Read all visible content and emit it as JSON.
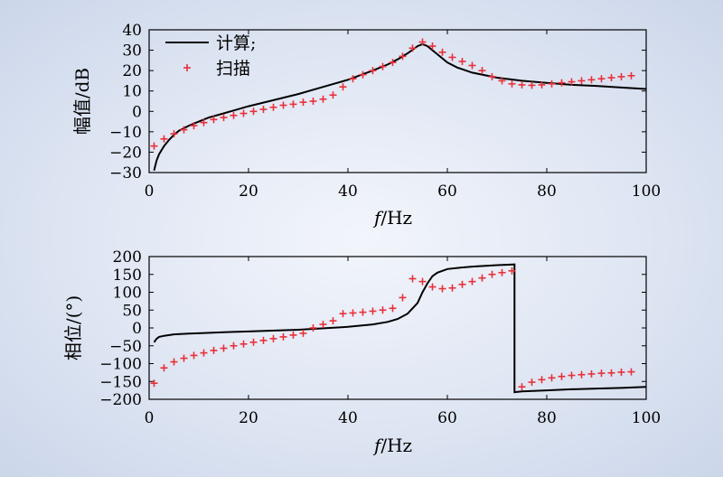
{
  "chart_data": [
    {
      "type": "line",
      "title": "",
      "xlabel_italic": "f",
      "xlabel_rest": "/Hz",
      "ylabel": "幅值/dB",
      "xlim": [
        0,
        100
      ],
      "ylim": [
        -30,
        40
      ],
      "xticks": [
        "0",
        "20",
        "40",
        "60",
        "80",
        "100"
      ],
      "yticks": [
        "40",
        "30",
        "20",
        "10",
        "0",
        "−10",
        "−20",
        "−30"
      ],
      "legend": {
        "placement": "top-left",
        "entries": [
          "计算;",
          "扫描"
        ]
      },
      "series": [
        {
          "name": "计算;",
          "style": "line",
          "color": "#000000",
          "x": [
            1,
            1.5,
            2,
            3,
            4,
            5,
            6,
            8,
            10,
            12,
            15,
            20,
            25,
            30,
            35,
            40,
            45,
            48,
            50,
            52,
            54,
            55,
            56,
            58,
            60,
            62,
            65,
            70,
            75,
            80,
            85,
            90,
            95,
            100
          ],
          "y": [
            -29,
            -24,
            -21,
            -17,
            -14,
            -11.5,
            -9.5,
            -7,
            -5,
            -3,
            -1,
            2.5,
            5.5,
            8.5,
            12,
            15.5,
            20,
            23,
            25.5,
            28.5,
            32,
            33,
            32,
            28,
            24,
            21.5,
            19,
            16.5,
            15,
            14,
            13,
            12.5,
            11.7,
            11
          ]
        },
        {
          "name": "扫描",
          "style": "plus-marker",
          "color": "#e8303a",
          "x": [
            1,
            3,
            5,
            7,
            9,
            11,
            13,
            15,
            17,
            19,
            21,
            23,
            25,
            27,
            29,
            31,
            33,
            35,
            37,
            39,
            41,
            43,
            45,
            47,
            49,
            51,
            53,
            55,
            57,
            59,
            61,
            63,
            65,
            67,
            69,
            71,
            73,
            75,
            77,
            79,
            81,
            83,
            85,
            87,
            89,
            91,
            93,
            95,
            97
          ],
          "y": [
            -17,
            -13.5,
            -11,
            -9,
            -7,
            -5.5,
            -4,
            -3,
            -2,
            -1,
            0,
            1,
            2,
            3,
            3.5,
            4.5,
            5,
            6,
            8,
            12,
            16,
            18,
            20,
            22,
            24,
            27,
            31,
            34,
            32,
            29,
            26.5,
            24.5,
            22.5,
            20,
            17,
            15,
            13.5,
            13,
            12.8,
            13,
            13.5,
            14,
            14.5,
            15,
            15.5,
            16,
            16.5,
            17,
            17.5
          ]
        }
      ]
    },
    {
      "type": "line",
      "title": "",
      "xlabel_italic": "f",
      "xlabel_rest": "/Hz",
      "ylabel": "相位/(°)",
      "xlim": [
        0,
        100
      ],
      "ylim": [
        -200,
        200
      ],
      "xticks": [
        "0",
        "20",
        "40",
        "60",
        "80",
        "100"
      ],
      "yticks": [
        "200",
        "150",
        "100",
        "50",
        "0",
        "−50",
        "−100",
        "−150",
        "−200"
      ],
      "series": [
        {
          "style": "line",
          "color": "#000000",
          "x": [
            1,
            1.5,
            2,
            3,
            5,
            8,
            10,
            15,
            20,
            30,
            40,
            45,
            48,
            50,
            52,
            54,
            55,
            56,
            57,
            58,
            60,
            62,
            65,
            70,
            73.5,
            73.5,
            75,
            80,
            85,
            90,
            95,
            100
          ],
          "y": [
            -40,
            -30,
            -25,
            -22,
            -18,
            -16,
            -15,
            -12,
            -10,
            -5,
            3,
            10,
            17,
            25,
            40,
            70,
            100,
            125,
            145,
            155,
            165,
            168,
            172,
            176,
            178,
            -180,
            -178,
            -175,
            -172,
            -170,
            -168,
            -165
          ]
        },
        {
          "style": "plus-marker",
          "color": "#e8303a",
          "x": [
            1,
            3,
            5,
            7,
            9,
            11,
            13,
            15,
            17,
            19,
            21,
            23,
            25,
            27,
            29,
            31,
            33,
            35,
            37,
            39,
            41,
            43,
            45,
            47,
            49,
            51,
            53,
            55,
            57,
            59,
            61,
            63,
            65,
            67,
            69,
            71,
            73,
            75,
            77,
            79,
            81,
            83,
            85,
            87,
            89,
            91,
            93,
            95,
            97
          ],
          "y": [
            -155,
            -112,
            -95,
            -85,
            -77,
            -70,
            -63,
            -57,
            -50,
            -45,
            -40,
            -35,
            -30,
            -25,
            -20,
            -15,
            0,
            10,
            20,
            40,
            42,
            44,
            47,
            50,
            55,
            85,
            138,
            130,
            115,
            110,
            112,
            122,
            130,
            140,
            150,
            155,
            160,
            -165,
            -152,
            -145,
            -140,
            -136,
            -133,
            -131,
            -129,
            -127,
            -126,
            -124,
            -123
          ]
        }
      ]
    }
  ]
}
